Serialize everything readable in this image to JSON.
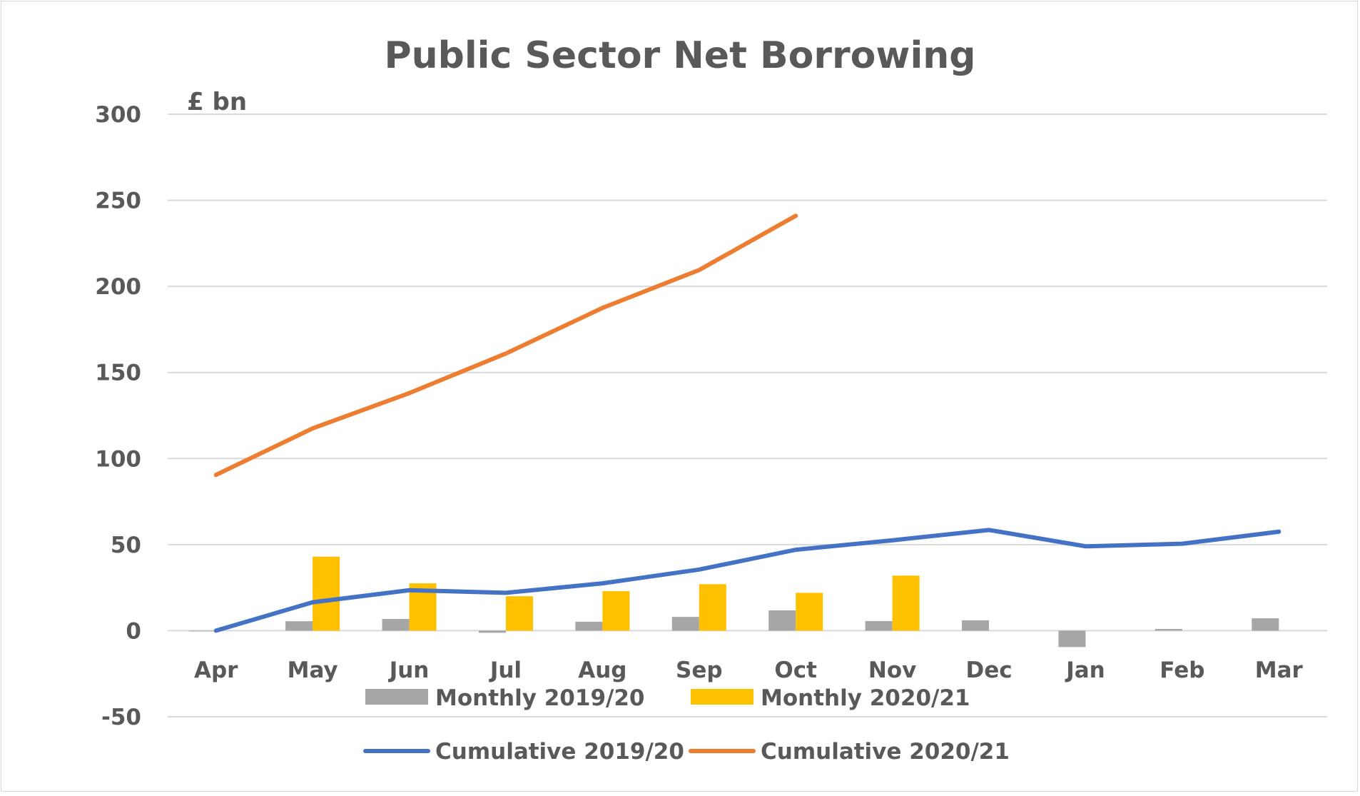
{
  "chart_data": {
    "type": "bar+line",
    "title": "Public Sector Net Borrowing",
    "unit_label": "£ bn",
    "xlabel": "",
    "ylabel": "",
    "ylim": [
      -50,
      300
    ],
    "yticks": [
      "300",
      "250",
      "200",
      "150",
      "100",
      "50",
      "0",
      "-50"
    ],
    "ytick_values": [
      300,
      250,
      200,
      150,
      100,
      50,
      0,
      -50
    ],
    "grid": true,
    "legend_placement": "bottom",
    "categories": [
      "Apr",
      "May",
      "Jun",
      "Jul",
      "Aug",
      "Sep",
      "Oct",
      "Nov",
      "Dec",
      "Jan",
      "Feb",
      "Mar"
    ],
    "bar_series": [
      {
        "name": "Monthly 2019/20",
        "color": "#a6a6a6",
        "values": [
          0,
          5.5,
          6.8,
          -1.2,
          5.2,
          8,
          11.8,
          5.6,
          6,
          -9.5,
          1,
          7.2
        ]
      },
      {
        "name": "Monthly 2020/21",
        "color": "#ffc000",
        "values": [
          null,
          43,
          27.5,
          20,
          23,
          27,
          22,
          32,
          null,
          null,
          null,
          null
        ]
      }
    ],
    "line_series": [
      {
        "name": "Cumulative 2019/20",
        "color": "#4472c4",
        "values": [
          0,
          16.5,
          23.5,
          22,
          27.5,
          35.5,
          47,
          52.5,
          58.5,
          49,
          50.5,
          57.5
        ]
      },
      {
        "name": "Cumulative 2020/21",
        "color": "#ed7d31",
        "values": [
          90.5,
          117.5,
          138,
          161,
          187.5,
          209.5,
          241,
          null,
          null,
          null,
          null,
          null
        ]
      }
    ]
  }
}
